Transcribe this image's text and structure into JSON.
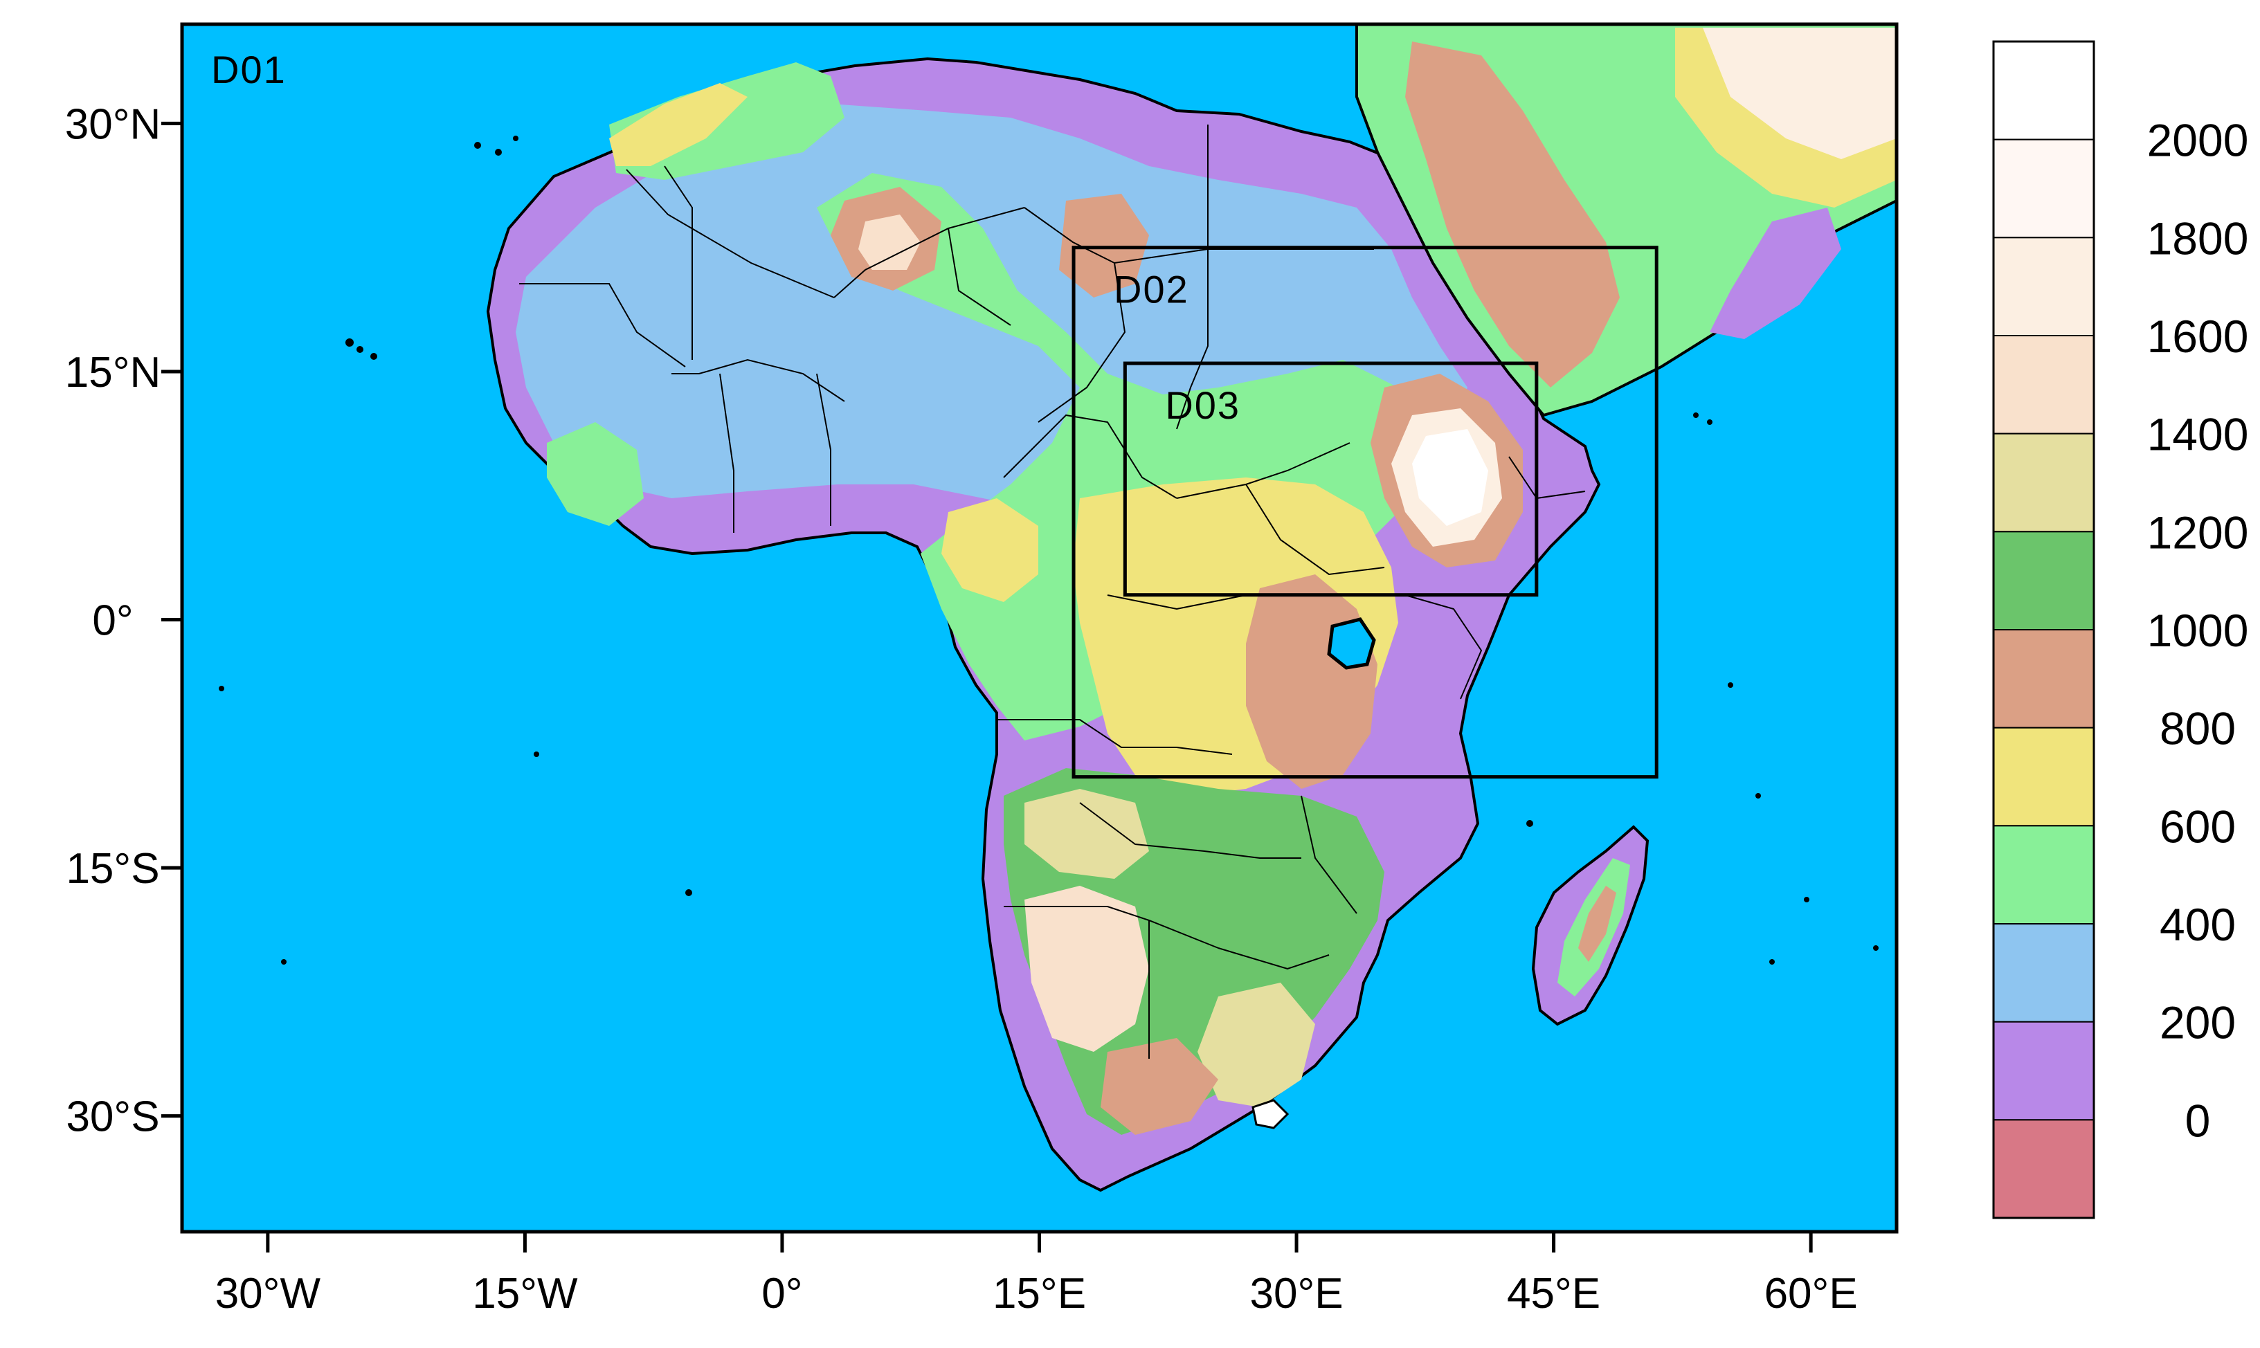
{
  "map": {
    "panel_label": "D01",
    "nested_domains": [
      {
        "label": "D02",
        "lon": [
          17,
          51
        ],
        "lat": [
          -9.5,
          22.5
        ]
      },
      {
        "label": "D03",
        "lon": [
          20,
          44
        ],
        "lat": [
          1.5,
          15.5
        ]
      }
    ],
    "extent": {
      "lon": [
        -35,
        65
      ],
      "lat": [
        -37,
        36
      ]
    },
    "x_ticks": [
      {
        "value": -30,
        "label": "30°W"
      },
      {
        "value": -15,
        "label": "15°W"
      },
      {
        "value": 0,
        "label": "0°"
      },
      {
        "value": 15,
        "label": "15°E"
      },
      {
        "value": 30,
        "label": "30°E"
      },
      {
        "value": 45,
        "label": "45°E"
      },
      {
        "value": 60,
        "label": "60°E"
      }
    ],
    "y_ticks": [
      {
        "value": 30,
        "label": "30°N"
      },
      {
        "value": 15,
        "label": "15°N"
      },
      {
        "value": 0,
        "label": "0°"
      },
      {
        "value": -15,
        "label": "15°S"
      },
      {
        "value": -30,
        "label": "30°S"
      }
    ],
    "ocean_color": "#00bfff"
  },
  "colorbar": {
    "boundary_labels": [
      "2000",
      "1800",
      "1600",
      "1400",
      "1200",
      "1000",
      "800",
      "600",
      "400",
      "200",
      "0"
    ],
    "bins_top_to_bottom": [
      "#ffffff",
      "#fff7f3",
      "#fcefe2",
      "#f9e1cc",
      "#e5dfa0",
      "#6bc56b",
      "#dba085",
      "#f0e47c",
      "#88f098",
      "#8ec5f0",
      "#b888e8",
      "#d87886"
    ]
  }
}
